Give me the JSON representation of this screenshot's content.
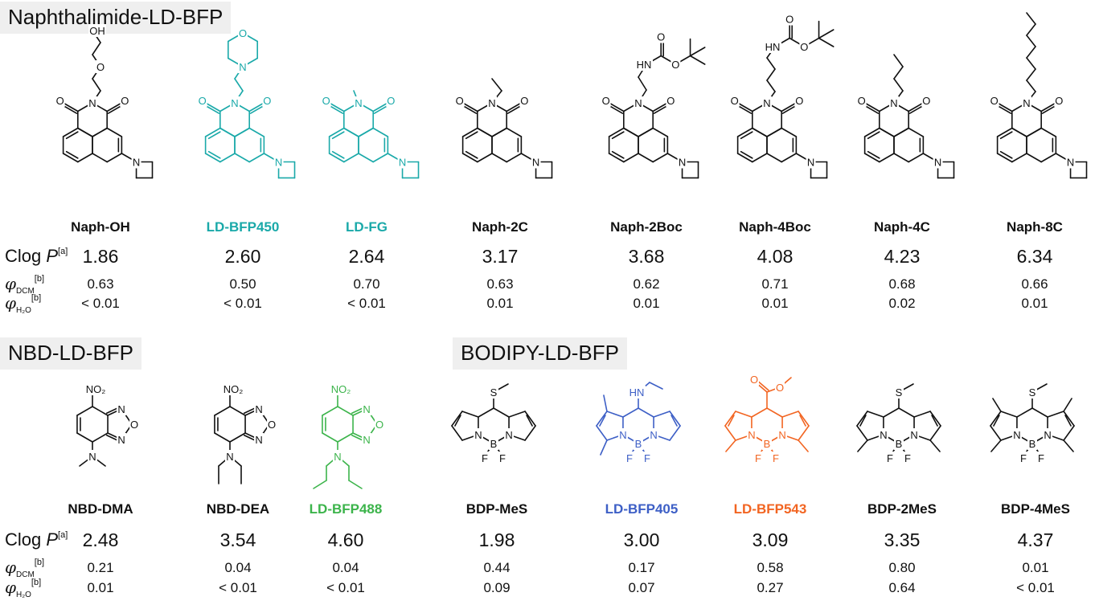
{
  "row_labels": {
    "clogp": "Clog ",
    "clogp_italic": "P",
    "clogp_sup": "[a]",
    "phi": "φ",
    "dcm_sub": "DCM",
    "h2o_sub": "H₂O",
    "phi_sup": "[b]"
  },
  "atom_labels": {
    "O": "O",
    "N": "N",
    "OH": "OH",
    "HN": "HN",
    "S": "S",
    "B": "B",
    "F": "F",
    "NO2": "NO₂",
    "minus": "−"
  },
  "colors": {
    "black": "#111111",
    "teal": "#1aa9a9",
    "green": "#3cb44b",
    "blue": "#3d5fc6",
    "orange": "#f26522"
  },
  "sections": [
    {
      "title": "Naphthalimide-LD-BFP",
      "compounds": [
        {
          "name": "Naph-OH",
          "clogp": "1.86",
          "phi_dcm": "0.63",
          "phi_h2o": "< 0.01",
          "color": "#111111"
        },
        {
          "name": "LD-BFP450",
          "clogp": "2.60",
          "phi_dcm": "0.50",
          "phi_h2o": "< 0.01",
          "color": "#1aa9a9"
        },
        {
          "name": "LD-FG",
          "clogp": "2.64",
          "phi_dcm": "0.70",
          "phi_h2o": "< 0.01",
          "color": "#1aa9a9"
        },
        {
          "name": "Naph-2C",
          "clogp": "3.17",
          "phi_dcm": "0.63",
          "phi_h2o": "0.01",
          "color": "#111111"
        },
        {
          "name": "Naph-2Boc",
          "clogp": "3.68",
          "phi_dcm": "0.62",
          "phi_h2o": "0.01",
          "color": "#111111"
        },
        {
          "name": "Naph-4Boc",
          "clogp": "4.08",
          "phi_dcm": "0.71",
          "phi_h2o": "0.01",
          "color": "#111111"
        },
        {
          "name": "Naph-4C",
          "clogp": "4.23",
          "phi_dcm": "0.68",
          "phi_h2o": "0.02",
          "color": "#111111"
        },
        {
          "name": "Naph-8C",
          "clogp": "6.34",
          "phi_dcm": "0.66",
          "phi_h2o": "0.01",
          "color": "#111111"
        }
      ]
    },
    {
      "title": "NBD-LD-BFP",
      "compounds": [
        {
          "name": "NBD-DMA",
          "clogp": "2.48",
          "phi_dcm": "0.21",
          "phi_h2o": "0.01",
          "color": "#111111"
        },
        {
          "name": "NBD-DEA",
          "clogp": "3.54",
          "phi_dcm": "0.04",
          "phi_h2o": "< 0.01",
          "color": "#111111"
        },
        {
          "name": "LD-BFP488",
          "clogp": "4.60",
          "phi_dcm": "0.04",
          "phi_h2o": "< 0.01",
          "color": "#3cb44b"
        }
      ]
    },
    {
      "title": "BODIPY-LD-BFP",
      "compounds": [
        {
          "name": "BDP-MeS",
          "clogp": "1.98",
          "phi_dcm": "0.44",
          "phi_h2o": "0.09",
          "color": "#111111"
        },
        {
          "name": "LD-BFP405",
          "clogp": "3.00",
          "phi_dcm": "0.17",
          "phi_h2o": "0.07",
          "color": "#3d5fc6"
        },
        {
          "name": "LD-BFP543",
          "clogp": "3.09",
          "phi_dcm": "0.58",
          "phi_h2o": "0.27",
          "color": "#f26522"
        },
        {
          "name": "BDP-2MeS",
          "clogp": "3.35",
          "phi_dcm": "0.80",
          "phi_h2o": "0.64",
          "color": "#111111"
        },
        {
          "name": "BDP-4MeS",
          "clogp": "4.37",
          "phi_dcm": "0.01",
          "phi_h2o": "< 0.01",
          "color": "#111111"
        }
      ]
    }
  ]
}
